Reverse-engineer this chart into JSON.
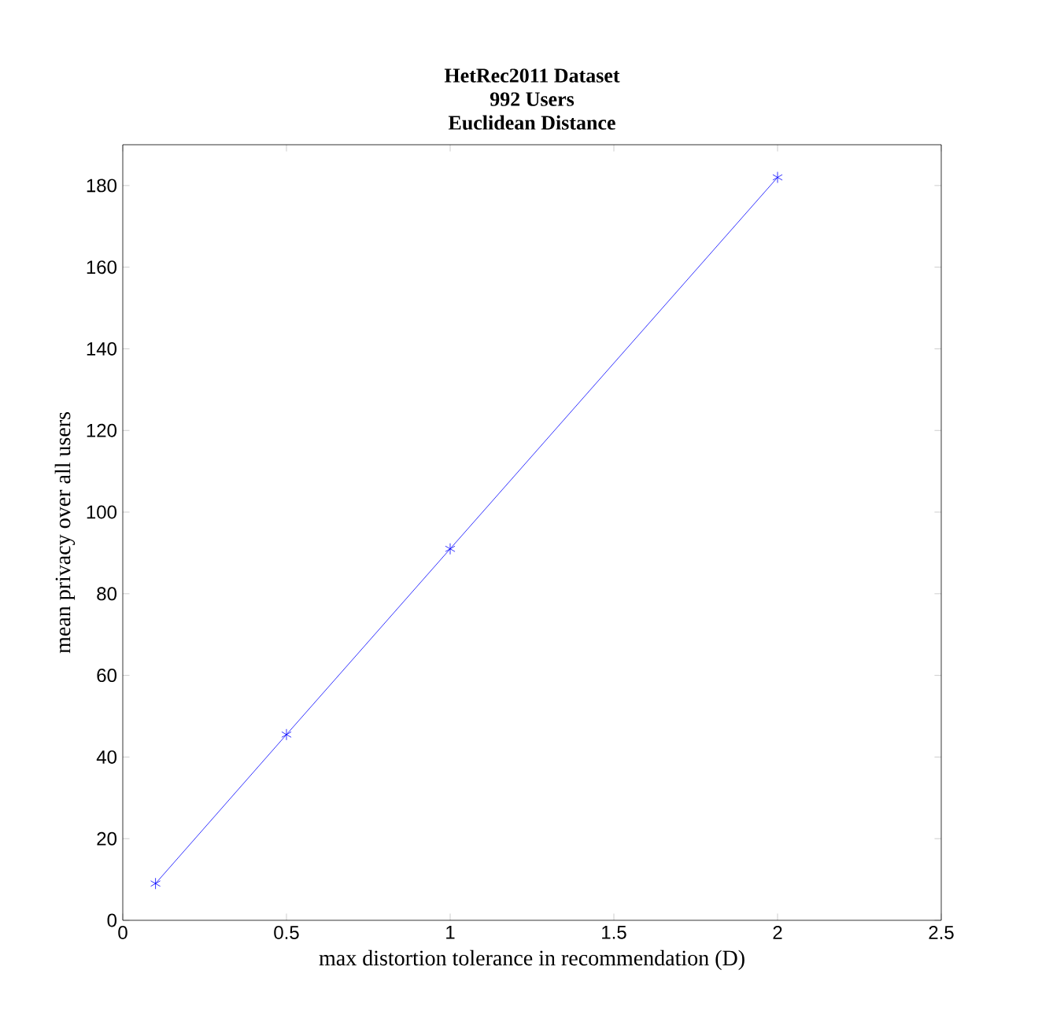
{
  "chart_data": {
    "type": "line",
    "title": "HetRec2011 Dataset\n992 Users\nEuclidean Distance",
    "xlabel": "max distortion tolerance in recommendation (D)",
    "ylabel": "mean privacy over all users",
    "x": [
      0.1,
      0.5,
      1,
      2
    ],
    "series": [
      {
        "color": "#0000ff",
        "values": [
          9,
          45.5,
          91,
          182
        ]
      }
    ],
    "xlim": [
      0,
      2.5
    ],
    "xticks": [
      0,
      0.5,
      1,
      1.5,
      2,
      2.5
    ],
    "ylim": [
      0,
      190
    ],
    "yticks": [
      0,
      20,
      40,
      60,
      80,
      100,
      120,
      140,
      160,
      180
    ],
    "marker": "cross",
    "line_style": "solid"
  }
}
